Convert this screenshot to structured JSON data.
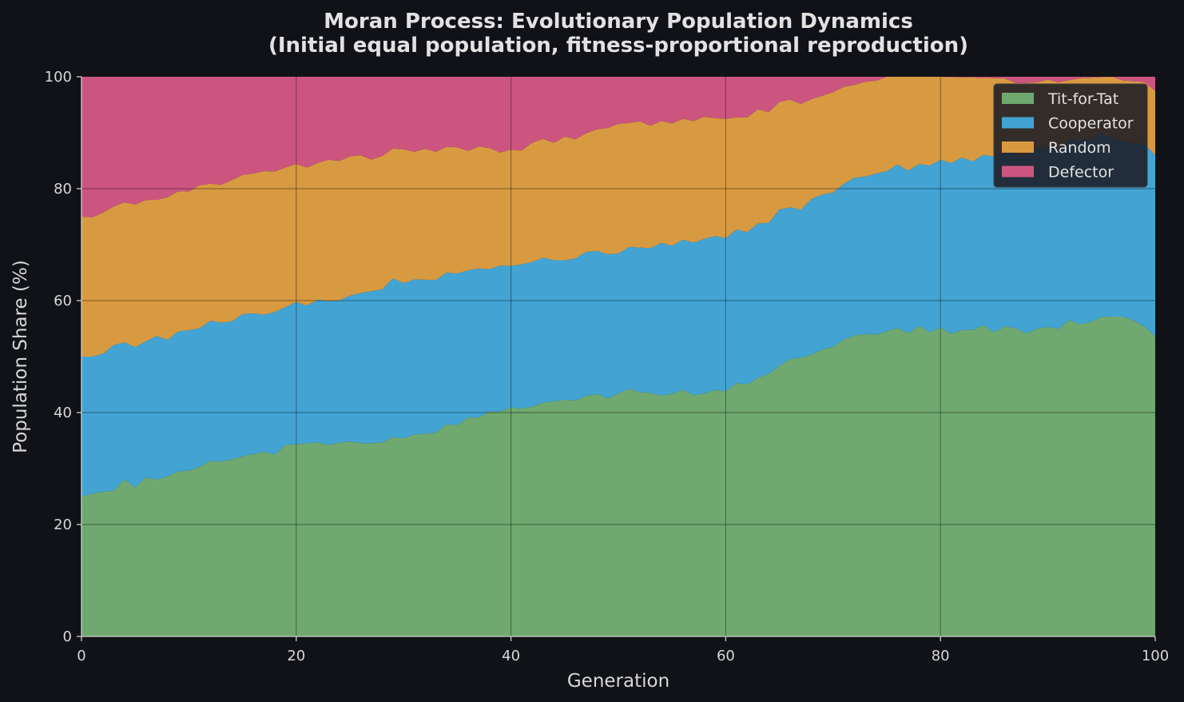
{
  "chart_data": {
    "type": "area",
    "stacked": true,
    "title": "Moran Process: Evolutionary Population Dynamics",
    "subtitle": "(Initial equal population, fitness-proportional reproduction)",
    "xlabel": "Generation",
    "ylabel": "Population Share (%)",
    "xlim": [
      0,
      100
    ],
    "ylim": [
      0,
      100
    ],
    "xticks": [
      0,
      20,
      40,
      60,
      80,
      100
    ],
    "yticks": [
      0,
      20,
      40,
      60,
      80,
      100
    ],
    "grid": true,
    "legend_position": "top-right",
    "x_keyframes": [
      0,
      10,
      20,
      30,
      40,
      50,
      60,
      70,
      75,
      80,
      90,
      96,
      100
    ],
    "series": [
      {
        "name": "Tit-for-Tat",
        "color": "#6fa96f",
        "values": [
          25,
          30,
          34,
          35.5,
          41,
          43,
          44,
          52,
          55,
          54.5,
          55.5,
          57.5,
          54.5
        ]
      },
      {
        "name": "Cooperator",
        "color": "#43a4d4",
        "values": [
          25,
          25,
          25,
          28,
          25.5,
          25.5,
          27.5,
          27.5,
          28.5,
          30,
          32.5,
          32,
          32
        ]
      },
      {
        "name": "Random",
        "color": "#d89a41",
        "values": [
          25,
          25,
          25,
          23.5,
          20.5,
          22.5,
          21,
          17.5,
          16.5,
          15.5,
          11.5,
          10.5,
          11.5
        ]
      },
      {
        "name": "Defector",
        "color": "#cc5580",
        "values": [
          25,
          20,
          16,
          13,
          13,
          9,
          7.5,
          3,
          0,
          0,
          0.5,
          0,
          2
        ]
      }
    ]
  }
}
